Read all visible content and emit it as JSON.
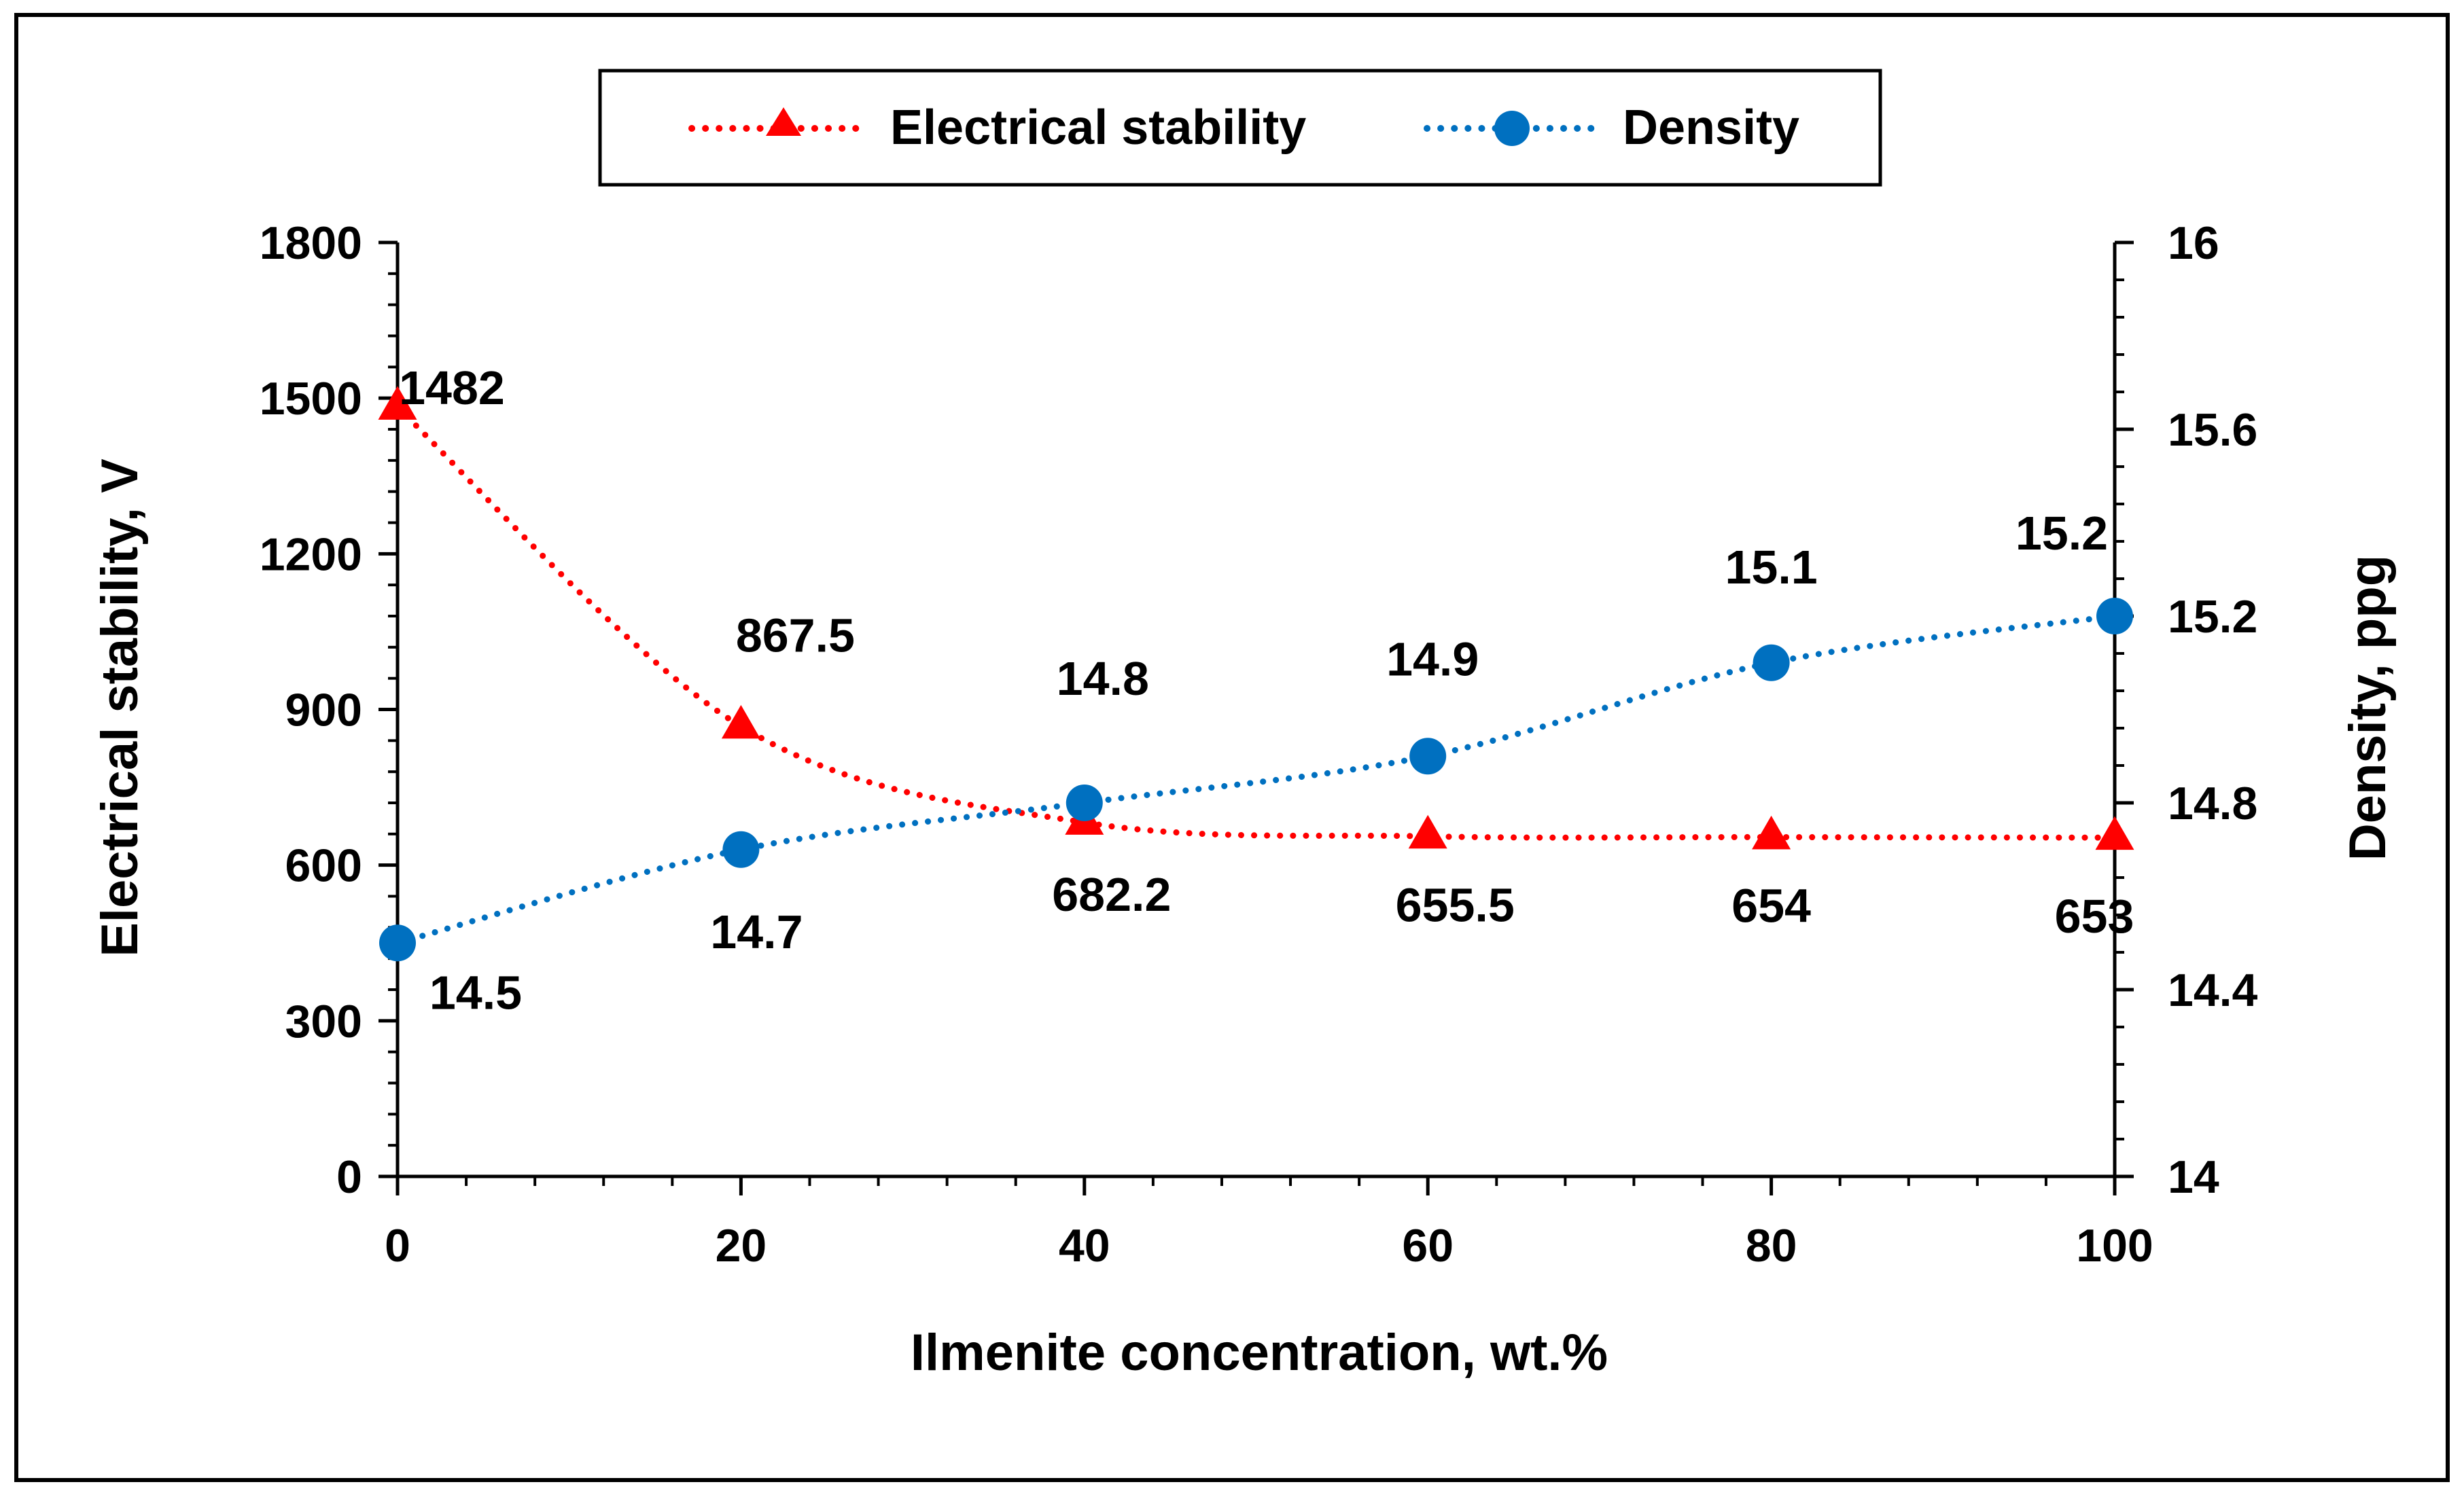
{
  "chart_data": {
    "type": "line",
    "x_axis": {
      "label": "Ilmenite concentration, wt.%",
      "range": [
        0,
        100
      ],
      "ticks": [
        0,
        20,
        40,
        60,
        80,
        100
      ],
      "minor_step": 4
    },
    "y_axis_left": {
      "label": "Electrical stability, V",
      "range": [
        0,
        1800
      ],
      "ticks": [
        0,
        300,
        600,
        900,
        1200,
        1500,
        1800
      ],
      "minor_step": 60
    },
    "y_axis_right": {
      "label": "Density, ppg",
      "range": [
        14,
        16
      ],
      "ticks": [
        "14",
        "14.4",
        "14.8",
        "15.2",
        "15.6",
        "16"
      ],
      "minor_step": 0.08
    },
    "legend": {
      "position": "top-center",
      "items": [
        {
          "label": "Electrical stability",
          "marker": "triangle",
          "color": "#ff0000"
        },
        {
          "label": "Density",
          "marker": "circle",
          "color": "#0070c0"
        }
      ]
    },
    "series": [
      {
        "name": "Electrical stability",
        "axis": "left",
        "color": "#ff0000",
        "marker": "triangle",
        "line": "dotted-smooth",
        "x": [
          0,
          20,
          40,
          60,
          80,
          100
        ],
        "values": [
          1482,
          867.5,
          682.2,
          655.5,
          654,
          653
        ],
        "labels": [
          "1482",
          "867.5",
          "682.2",
          "655.5",
          "654",
          "653"
        ]
      },
      {
        "name": "Density",
        "axis": "right",
        "color": "#0070c0",
        "marker": "circle",
        "line": "dotted-smooth",
        "x": [
          0,
          20,
          40,
          60,
          80,
          100
        ],
        "values": [
          14.5,
          14.7,
          14.8,
          14.9,
          15.1,
          15.2
        ],
        "labels": [
          "14.5",
          "14.7",
          "14.8",
          "14.9",
          "15.1",
          "15.2"
        ]
      }
    ]
  }
}
